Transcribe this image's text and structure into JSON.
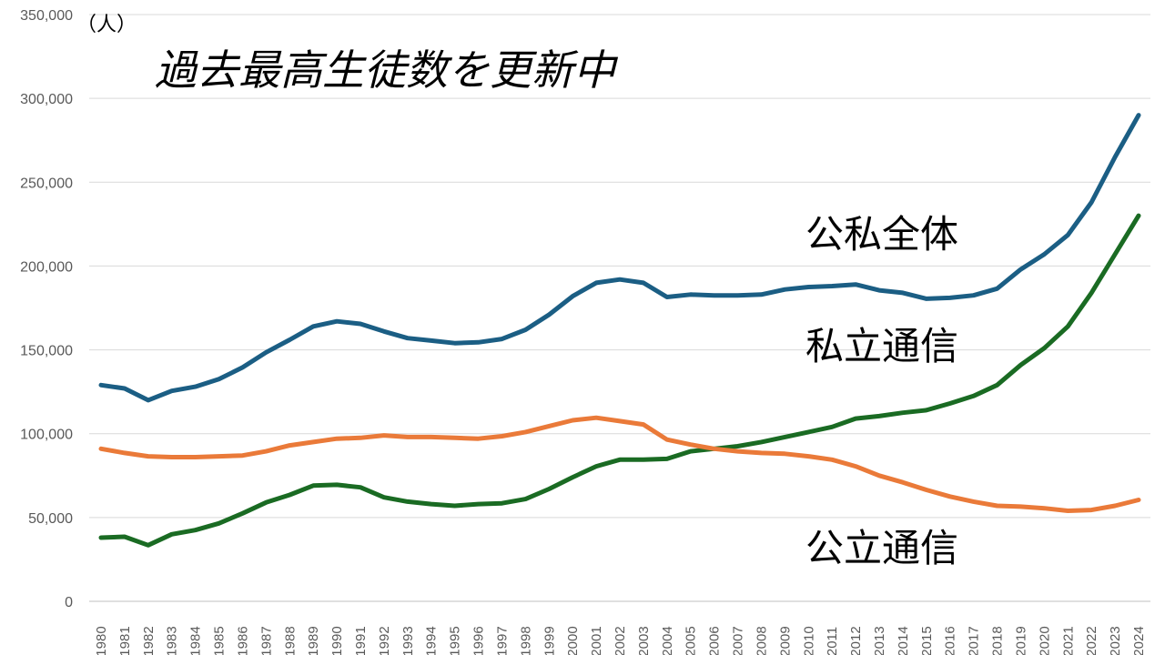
{
  "chart_data": {
    "type": "line",
    "title": "過去最高生徒数を更新中",
    "ylabel": "（人）",
    "xlabel": "",
    "ylim": [
      0,
      350000
    ],
    "yticks": [
      0,
      50000,
      100000,
      150000,
      200000,
      250000,
      300000,
      350000
    ],
    "ytick_labels": [
      "0",
      "50,000",
      "100,000",
      "150,000",
      "200,000",
      "250,000",
      "300,000",
      "350,000"
    ],
    "grid": true,
    "categories": [
      "1980",
      "1981",
      "1982",
      "1983",
      "1984",
      "1985",
      "1986",
      "1987",
      "1988",
      "1989",
      "1990",
      "1991",
      "1992",
      "1993",
      "1994",
      "1995",
      "1996",
      "1997",
      "1998",
      "1999",
      "2000",
      "2001",
      "2002",
      "2003",
      "2004",
      "2005",
      "2006",
      "2007",
      "2008",
      "2009",
      "2010",
      "2011",
      "2012",
      "2013",
      "2014",
      "2015",
      "2016",
      "2017",
      "2018",
      "2019",
      "2020",
      "2021",
      "2022",
      "2023",
      "2024"
    ],
    "series": [
      {
        "name": "公私全体",
        "color": "#1b5e84",
        "values": [
          129000,
          127000,
          120000,
          125500,
          128000,
          132500,
          139500,
          148500,
          156000,
          164000,
          167000,
          165500,
          161000,
          157000,
          155500,
          154000,
          154500,
          156500,
          162000,
          171000,
          182000,
          190000,
          192000,
          190000,
          181500,
          183000,
          182500,
          182500,
          183000,
          186000,
          187500,
          188000,
          189000,
          185500,
          184000,
          180500,
          181000,
          182500,
          186500,
          198000,
          207000,
          218500,
          238000,
          265000,
          290000
        ]
      },
      {
        "name": "私立通信",
        "color": "#1a6b23",
        "values": [
          38000,
          38500,
          33500,
          40000,
          42500,
          46500,
          52500,
          59000,
          63500,
          69000,
          69500,
          68000,
          62000,
          59500,
          58000,
          57000,
          58000,
          58500,
          61000,
          67000,
          74000,
          80500,
          84500,
          84500,
          85000,
          89500,
          91000,
          92500,
          95000,
          98000,
          101000,
          104000,
          109000,
          110500,
          112500,
          114000,
          118000,
          122500,
          129000,
          141000,
          151000,
          164000,
          184000,
          207000,
          230000
        ]
      },
      {
        "name": "公立通信",
        "color": "#ea7a39",
        "values": [
          91000,
          88500,
          86500,
          86000,
          86000,
          86500,
          87000,
          89500,
          93000,
          95000,
          97000,
          97500,
          99000,
          98000,
          98000,
          97500,
          97000,
          98500,
          101000,
          104500,
          108000,
          109500,
          107500,
          105500,
          96500,
          93500,
          91000,
          89500,
          88500,
          88000,
          86500,
          84500,
          80500,
          75000,
          71000,
          66500,
          62500,
          59500,
          57000,
          56500,
          55500,
          54000,
          54500,
          57000,
          60500
        ]
      }
    ]
  }
}
